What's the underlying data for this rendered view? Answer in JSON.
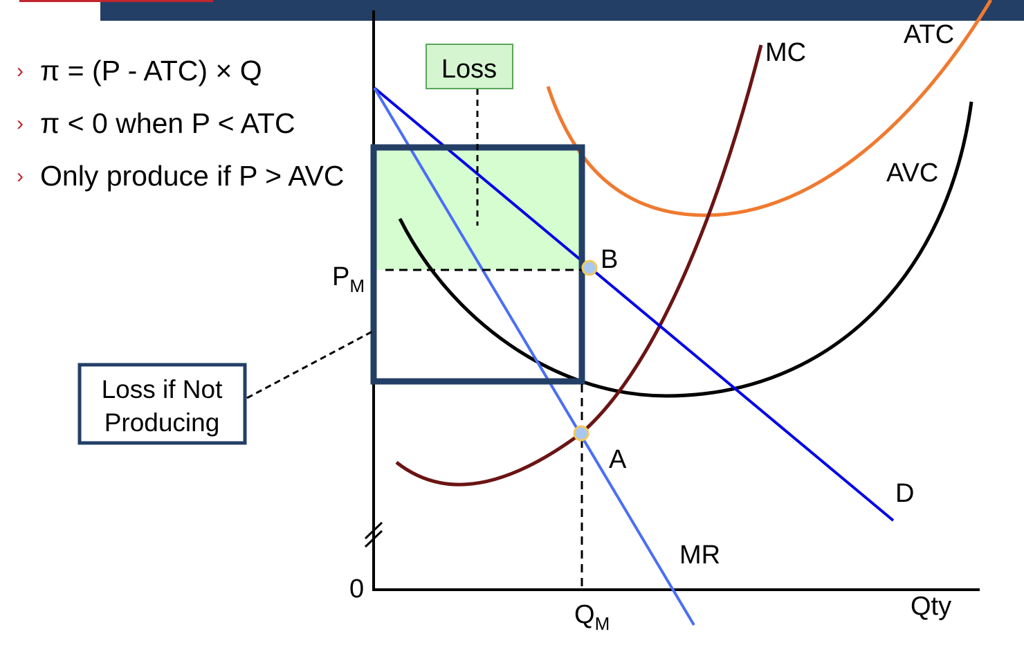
{
  "bullets": [
    "π = (P - ATC) × Q",
    "π < 0 when P < ATC",
    "Only produce if P > AVC"
  ],
  "labels": {
    "loss": "Loss",
    "loss_not_producing": [
      "Loss if Not",
      "Producing"
    ],
    "mc": "MC",
    "atc": "ATC",
    "avc": "AVC",
    "d": "D",
    "mr": "MR",
    "point_a": "A",
    "point_b": "B",
    "pm": "P",
    "pm_sub": "M",
    "qm": "Q",
    "qm_sub": "M",
    "zero": "0",
    "qty": "Qty"
  },
  "colors": {
    "header": "#243f66",
    "accent": "#c0262d",
    "mc": "#6b1414",
    "atc": "#ef7a30",
    "avc": "#000000",
    "demand": "#0000e6",
    "mr": "#4a6ef5",
    "loss_fill": "#d5fdd0"
  }
}
